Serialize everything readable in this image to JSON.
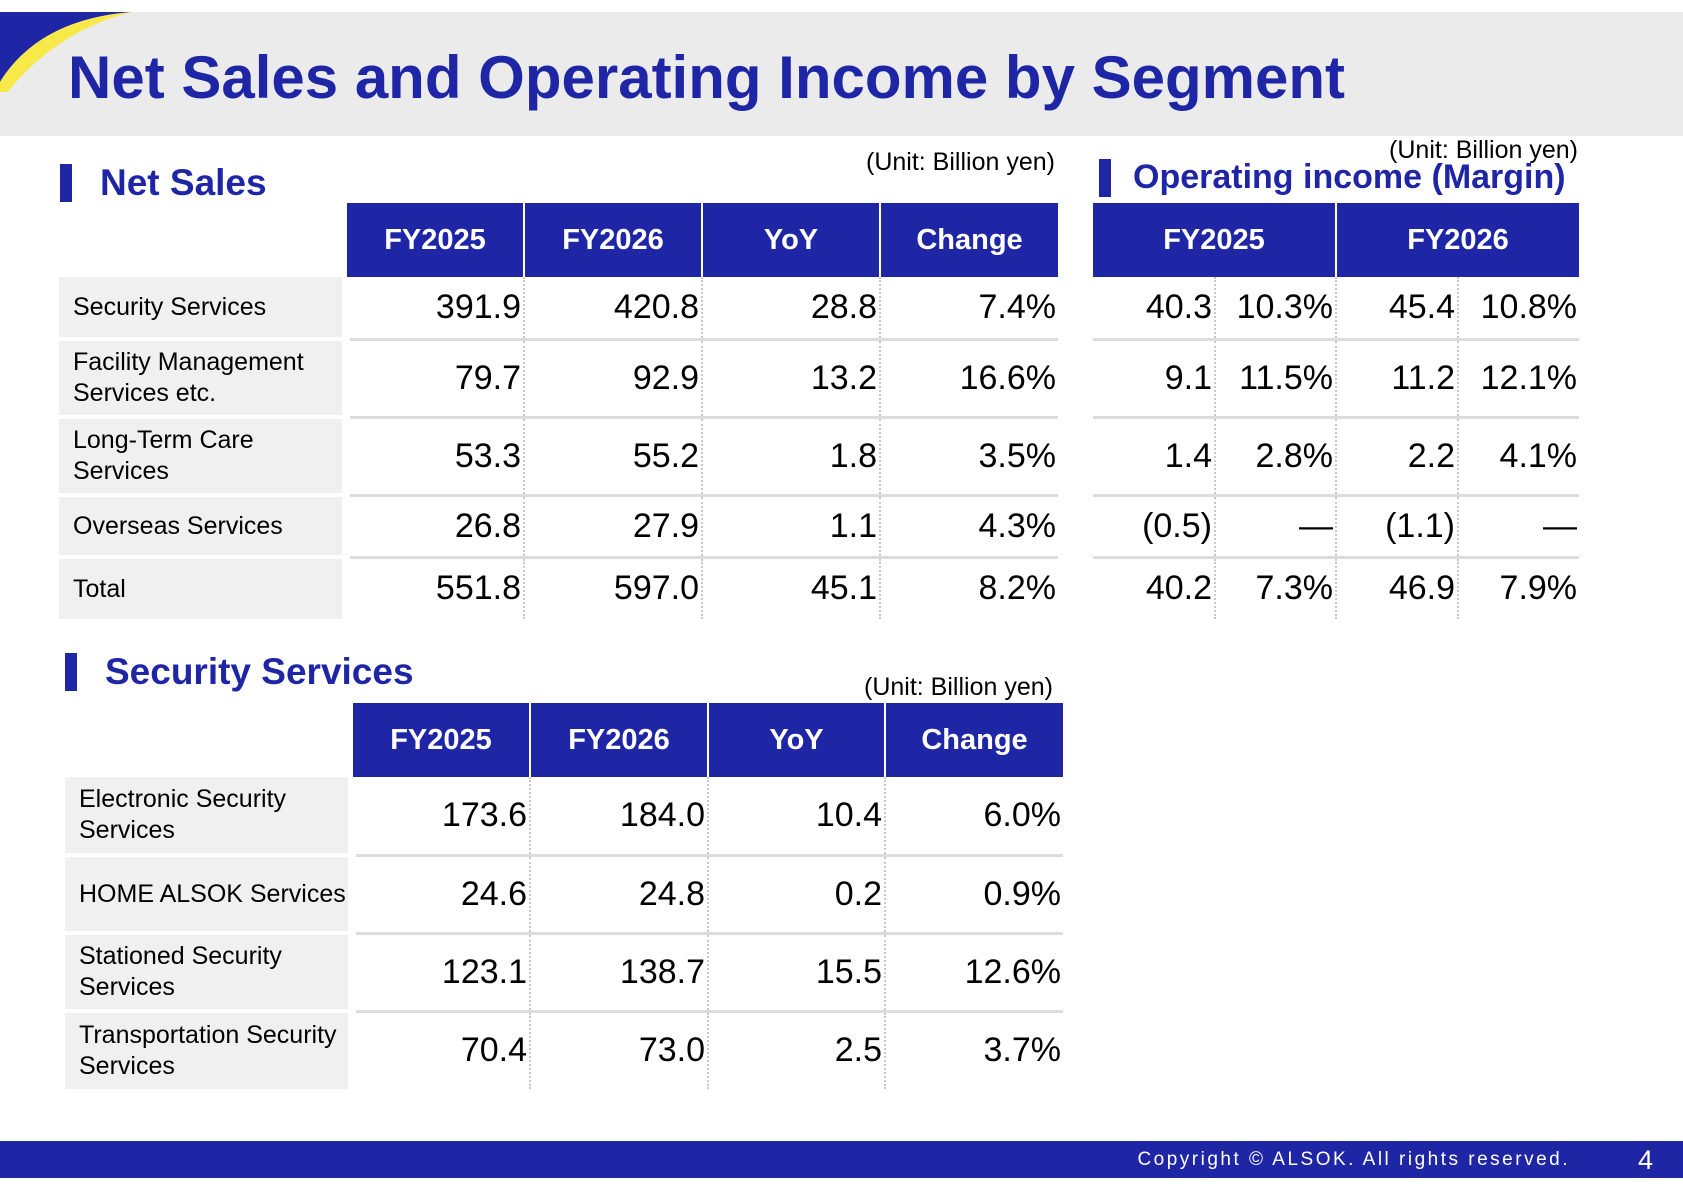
{
  "page": {
    "title": "Net Sales and Operating Income by Segment",
    "page_number": "4",
    "copyright": "Copyright © ALSOK. All rights reserved.",
    "colors": {
      "brand_blue": "#1f26a6",
      "accent_yellow": "#f6e948",
      "label_bg": "#f0f0f0",
      "header_bg": "#ebebeb"
    }
  },
  "net_sales": {
    "title": "Net Sales",
    "unit": "(Unit: Billion yen)",
    "headers": [
      "FY2025",
      "FY2026",
      "YoY",
      "Change"
    ],
    "rows": [
      {
        "label": "Security Services",
        "cells": [
          "391.9",
          "420.8",
          "28.8",
          "7.4%"
        ]
      },
      {
        "label": "Facility Management Services etc.",
        "cells": [
          "79.7",
          "92.9",
          "13.2",
          "16.6%"
        ]
      },
      {
        "label": "Long-Term Care Services",
        "cells": [
          "53.3",
          "55.2",
          "1.8",
          "3.5%"
        ]
      },
      {
        "label": "Overseas Services",
        "cells": [
          "26.8",
          "27.9",
          "1.1",
          "4.3%"
        ]
      },
      {
        "label": "Total",
        "cells": [
          "551.8",
          "597.0",
          "45.1",
          "8.2%"
        ]
      }
    ]
  },
  "operating_income": {
    "title": "Operating income (Margin)",
    "unit": "(Unit: Billion yen)",
    "headers": [
      "FY2025",
      "FY2026"
    ],
    "rows": [
      {
        "cells": [
          "40.3",
          "10.3%",
          "45.4",
          "10.8%"
        ]
      },
      {
        "cells": [
          "9.1",
          "11.5%",
          "11.2",
          "12.1%"
        ]
      },
      {
        "cells": [
          "1.4",
          "2.8%",
          "2.2",
          "4.1%"
        ]
      },
      {
        "cells": [
          "(0.5)",
          "—",
          "(1.1)",
          "—"
        ]
      },
      {
        "cells": [
          "40.2",
          "7.3%",
          "46.9",
          "7.9%"
        ]
      }
    ]
  },
  "security_services": {
    "title": "Security Services",
    "unit": "(Unit: Billion yen)",
    "headers": [
      "FY2025",
      "FY2026",
      "YoY",
      "Change"
    ],
    "rows": [
      {
        "label": "Electronic Security Services",
        "cells": [
          "173.6",
          "184.0",
          "10.4",
          "6.0%"
        ]
      },
      {
        "label": "HOME ALSOK Services",
        "cells": [
          "24.6",
          "24.8",
          "0.2",
          "0.9%"
        ]
      },
      {
        "label": "Stationed Security Services",
        "cells": [
          "123.1",
          "138.7",
          "15.5",
          "12.6%"
        ]
      },
      {
        "label": "Transportation Security Services",
        "cells": [
          "70.4",
          "73.0",
          "2.5",
          "3.7%"
        ]
      }
    ]
  }
}
